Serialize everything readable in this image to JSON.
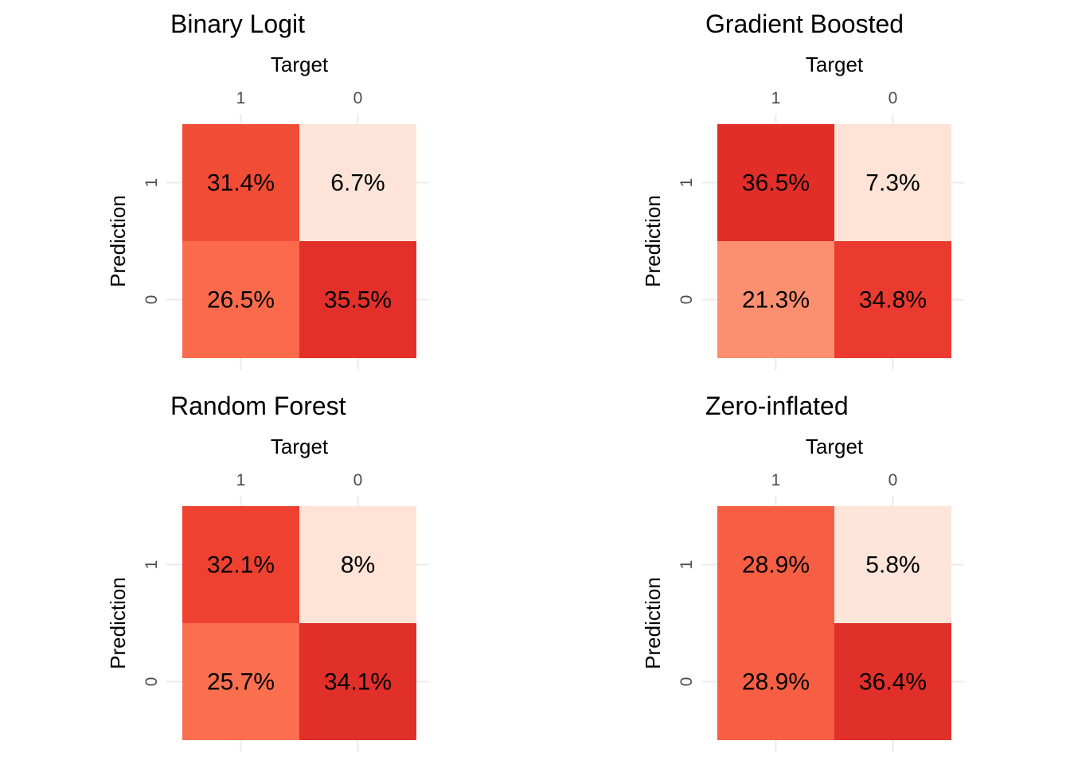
{
  "chart_data": [
    {
      "type": "heatmap",
      "title": "Binary Logit",
      "xlabel": "Target",
      "ylabel": "Prediction",
      "x_categories": [
        "1",
        "0"
      ],
      "y_categories": [
        "1",
        "0"
      ],
      "cells": [
        {
          "target": "1",
          "prediction": "1",
          "value": 31.4,
          "label": "31.4%"
        },
        {
          "target": "0",
          "prediction": "1",
          "value": 6.7,
          "label": "6.7%"
        },
        {
          "target": "1",
          "prediction": "0",
          "value": 26.5,
          "label": "26.5%"
        },
        {
          "target": "0",
          "prediction": "0",
          "value": 35.5,
          "label": "35.5%"
        }
      ],
      "colors": {
        "1-1": "#f14c36",
        "0-1": "#fee4d8",
        "1-0": "#fb6b4b",
        "0-0": "#e3302a"
      }
    },
    {
      "type": "heatmap",
      "title": "Gradient Boosted",
      "xlabel": "Target",
      "ylabel": "Prediction",
      "x_categories": [
        "1",
        "0"
      ],
      "y_categories": [
        "1",
        "0"
      ],
      "cells": [
        {
          "target": "1",
          "prediction": "1",
          "value": 36.5,
          "label": "36.5%"
        },
        {
          "target": "0",
          "prediction": "1",
          "value": 7.3,
          "label": "7.3%"
        },
        {
          "target": "1",
          "prediction": "0",
          "value": 21.3,
          "label": "21.3%"
        },
        {
          "target": "0",
          "prediction": "0",
          "value": 34.8,
          "label": "34.8%"
        }
      ],
      "colors": {
        "1-1": "#e12e28",
        "0-1": "#fee3d6",
        "1-0": "#fc8f70",
        "0-0": "#eb3a2f"
      }
    },
    {
      "type": "heatmap",
      "title": "Random Forest",
      "xlabel": "Target",
      "ylabel": "Prediction",
      "x_categories": [
        "1",
        "0"
      ],
      "y_categories": [
        "1",
        "0"
      ],
      "cells": [
        {
          "target": "1",
          "prediction": "1",
          "value": 32.1,
          "label": "32.1%"
        },
        {
          "target": "0",
          "prediction": "1",
          "value": 8,
          "label": "8%"
        },
        {
          "target": "1",
          "prediction": "0",
          "value": 25.7,
          "label": "25.7%"
        },
        {
          "target": "0",
          "prediction": "0",
          "value": 34.1,
          "label": "34.1%"
        }
      ],
      "colors": {
        "1-1": "#ee412f",
        "0-1": "#fee3d6",
        "1-0": "#fb6f4f",
        "0-0": "#e12f29"
      }
    },
    {
      "type": "heatmap",
      "title": "Zero-inflated",
      "xlabel": "Target",
      "ylabel": "Prediction",
      "x_categories": [
        "1",
        "0"
      ],
      "y_categories": [
        "1",
        "0"
      ],
      "cells": [
        {
          "target": "1",
          "prediction": "1",
          "value": 28.9,
          "label": "28.9%"
        },
        {
          "target": "0",
          "prediction": "1",
          "value": 5.8,
          "label": "5.8%"
        },
        {
          "target": "1",
          "prediction": "0",
          "value": 28.9,
          "label": "28.9%"
        },
        {
          "target": "0",
          "prediction": "0",
          "value": 36.4,
          "label": "36.4%"
        }
      ],
      "colors": {
        "1-1": "#f65f44",
        "0-1": "#fee5d9",
        "1-0": "#f65f44",
        "0-0": "#e12f29"
      }
    }
  ]
}
